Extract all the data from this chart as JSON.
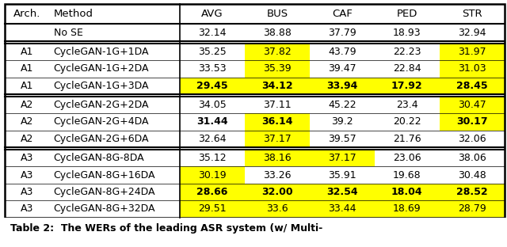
{
  "headers": [
    "Arch.",
    "Method",
    "AVG",
    "BUS",
    "CAF",
    "PED",
    "STR"
  ],
  "rows": [
    {
      "arch": "",
      "method": "No SE",
      "vals": [
        "32.14",
        "38.88",
        "37.79",
        "18.93",
        "32.94"
      ],
      "hl": [
        false,
        false,
        false,
        false,
        false
      ],
      "bold": [
        false,
        false,
        false,
        false,
        false
      ]
    },
    {
      "arch": "A1",
      "method": "CycleGAN-1G+1DA",
      "vals": [
        "35.25",
        "37.82",
        "43.79",
        "22.23",
        "31.97"
      ],
      "hl": [
        false,
        true,
        false,
        false,
        true
      ],
      "bold": [
        false,
        false,
        false,
        false,
        false
      ]
    },
    {
      "arch": "A1",
      "method": "CycleGAN-1G+2DA",
      "vals": [
        "33.53",
        "35.39",
        "39.47",
        "22.84",
        "31.03"
      ],
      "hl": [
        false,
        true,
        false,
        false,
        true
      ],
      "bold": [
        false,
        false,
        false,
        false,
        false
      ]
    },
    {
      "arch": "A1",
      "method": "CycleGAN-1G+3DA",
      "vals": [
        "29.45",
        "34.12",
        "33.94",
        "17.92",
        "28.45"
      ],
      "hl": [
        true,
        true,
        true,
        true,
        true
      ],
      "bold": [
        true,
        true,
        true,
        true,
        true
      ]
    },
    {
      "arch": "A2",
      "method": "CycleGAN-2G+2DA",
      "vals": [
        "34.05",
        "37.11",
        "45.22",
        "23.4",
        "30.47"
      ],
      "hl": [
        false,
        false,
        false,
        false,
        true
      ],
      "bold": [
        false,
        false,
        false,
        false,
        false
      ]
    },
    {
      "arch": "A2",
      "method": "CycleGAN-2G+4DA",
      "vals": [
        "31.44",
        "36.14",
        "39.2",
        "20.22",
        "30.17"
      ],
      "hl": [
        false,
        true,
        false,
        false,
        true
      ],
      "bold": [
        true,
        true,
        false,
        false,
        true
      ]
    },
    {
      "arch": "A2",
      "method": "CycleGAN-2G+6DA",
      "vals": [
        "32.64",
        "37.17",
        "39.57",
        "21.76",
        "32.06"
      ],
      "hl": [
        false,
        true,
        false,
        false,
        false
      ],
      "bold": [
        false,
        false,
        false,
        false,
        false
      ]
    },
    {
      "arch": "A3",
      "method": "CycleGAN-8G-8DA",
      "vals": [
        "35.12",
        "38.16",
        "37.17",
        "23.06",
        "38.06"
      ],
      "hl": [
        false,
        true,
        true,
        false,
        false
      ],
      "bold": [
        false,
        false,
        false,
        false,
        false
      ]
    },
    {
      "arch": "A3",
      "method": "CycleGAN-8G+16DA",
      "vals": [
        "30.19",
        "33.26",
        "35.91",
        "19.68",
        "30.48"
      ],
      "hl": [
        true,
        false,
        false,
        false,
        false
      ],
      "bold": [
        false,
        false,
        false,
        false,
        false
      ]
    },
    {
      "arch": "A3",
      "method": "CycleGAN-8G+24DA",
      "vals": [
        "28.66",
        "32.00",
        "32.54",
        "18.04",
        "28.52"
      ],
      "hl": [
        true,
        true,
        true,
        true,
        true
      ],
      "bold": [
        true,
        true,
        true,
        true,
        true
      ]
    },
    {
      "arch": "A3",
      "method": "CycleGAN-8G+32DA",
      "vals": [
        "29.51",
        "33.6",
        "33.44",
        "18.69",
        "28.79"
      ],
      "hl": [
        true,
        true,
        true,
        true,
        true
      ],
      "bold": [
        false,
        false,
        false,
        false,
        false
      ]
    }
  ],
  "group_separators_before": [
    1,
    4,
    7
  ],
  "highlight_color": "#FFFF00",
  "figsize": [
    6.4,
    3.12
  ],
  "dpi": 100,
  "caption": "Table 2:  The WERs of the leading ASR system (w/ Multi-"
}
